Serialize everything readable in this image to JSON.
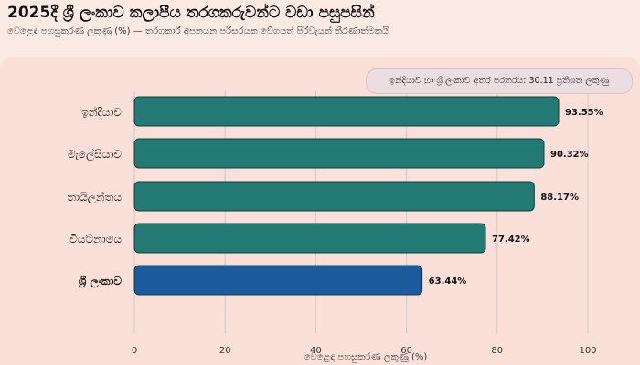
{
  "chart_data": {
    "type": "bar",
    "orientation": "horizontal",
    "title": "2025දී ශ්‍රී ලංකාව කලාපීය තරගකරුවන්ට වඩා පසුපසින්",
    "subtitle": "වෙළෙඳ පහසුකරණ ලකුණු (%) — තරගකාරී අපනයන පරිසරයක වේගයත් පිරිවැයත් තීරණාත්මකයි",
    "annotation": "ඉන්දියාව හා ශ්‍රී ලංකාව අතර පරතරය: 30.11 ප්‍රතිශත ලකුණු",
    "categories": [
      "ඉන්දියාව",
      "මැලේසියාව",
      "තායිලන්තය",
      "වියට්නාමය",
      "ශ්‍රී ලංකාව"
    ],
    "values": [
      93.55,
      90.32,
      88.17,
      77.42,
      63.44
    ],
    "value_labels": [
      "93.55%",
      "90.32%",
      "88.17%",
      "77.42%",
      "63.44%"
    ],
    "highlighted_category": "ශ්‍රී ලංකාව",
    "xlabel": "වෙළෙඳ පහසුකරණ ලකුණු (%)",
    "xlim": [
      0,
      100
    ],
    "xticks": [
      "0",
      "20",
      "40",
      "60",
      "80",
      "100"
    ],
    "grid": "vertical",
    "colors": {
      "default_bar": "#237a74",
      "highlight_bar": "#1b5a9c",
      "grid": "#c9c9c9"
    }
  }
}
